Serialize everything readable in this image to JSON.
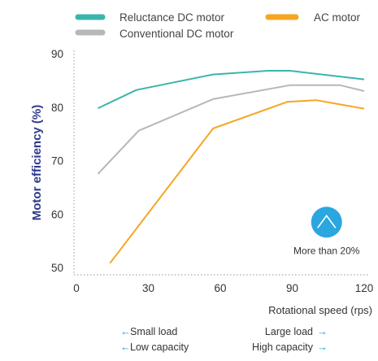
{
  "chart_data": {
    "type": "line",
    "ylabel": "Motor efficiency (%)",
    "xlabel": "Rotational speed (rps)",
    "xlim": [
      0,
      120
    ],
    "ylim": [
      49,
      92
    ],
    "x_ticks": [
      0,
      30,
      60,
      90,
      120
    ],
    "y_ticks": [
      50,
      60,
      70,
      80,
      90
    ],
    "legend_placement": "top",
    "series": [
      {
        "name": "Reluctance DC motor",
        "color": "#3ab5ac",
        "points": [
          [
            9,
            79.8
          ],
          [
            25,
            83.2
          ],
          [
            57,
            86.1
          ],
          [
            80,
            86.8
          ],
          [
            89,
            86.8
          ],
          [
            120,
            85.2
          ]
        ]
      },
      {
        "name": "Conventional DC motor",
        "color": "#b7b7b7",
        "points": [
          [
            9,
            67.5
          ],
          [
            26,
            75.6
          ],
          [
            57,
            81.5
          ],
          [
            89,
            84.1
          ],
          [
            110,
            84.1
          ],
          [
            120,
            83.0
          ]
        ]
      },
      {
        "name": "AC motor",
        "color": "#f5a623",
        "points": [
          [
            14,
            50.8
          ],
          [
            57,
            76.0
          ],
          [
            88,
            81.0
          ],
          [
            100,
            81.3
          ],
          [
            120,
            79.7
          ]
        ]
      }
    ],
    "annotation": {
      "text": "More than 20%",
      "icon": "up-chevron-circle-icon",
      "color": "#2aa6e0",
      "at": [
        105,
        60
      ]
    },
    "notes": {
      "left": [
        {
          "arrow": "←",
          "text": "Small load"
        },
        {
          "arrow": "←",
          "text": "Low capacity"
        }
      ],
      "right": [
        {
          "arrow": "→",
          "text": "Large load"
        },
        {
          "arrow": "→",
          "text": "High capacity"
        }
      ]
    }
  }
}
